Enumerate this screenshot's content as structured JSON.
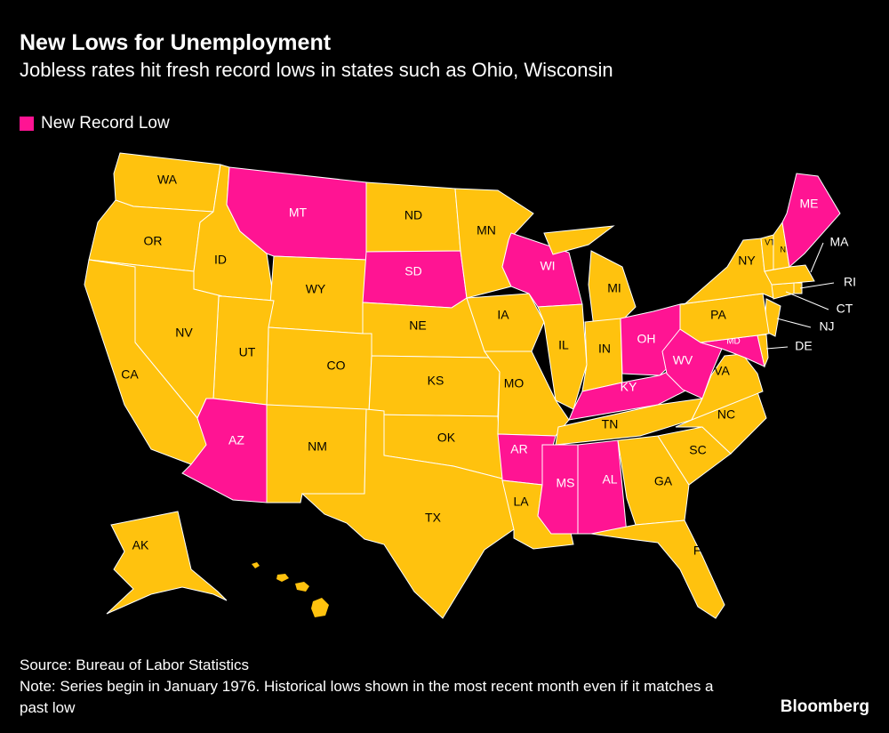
{
  "header": {
    "title": "New Lows for Unemployment",
    "subtitle": "Jobless rates hit fresh record lows in states such as Ohio, Wisconsin"
  },
  "legend": {
    "label": "New Record Low",
    "color": "#ff1493"
  },
  "default_color": "#ffc20e",
  "states": [
    {
      "abbr": "WA",
      "record_low": false
    },
    {
      "abbr": "OR",
      "record_low": false
    },
    {
      "abbr": "ID",
      "record_low": false
    },
    {
      "abbr": "MT",
      "record_low": true
    },
    {
      "abbr": "WY",
      "record_low": false
    },
    {
      "abbr": "ND",
      "record_low": false
    },
    {
      "abbr": "SD",
      "record_low": true
    },
    {
      "abbr": "NE",
      "record_low": false
    },
    {
      "abbr": "CO",
      "record_low": false
    },
    {
      "abbr": "UT",
      "record_low": false
    },
    {
      "abbr": "NV",
      "record_low": false
    },
    {
      "abbr": "CA",
      "record_low": false
    },
    {
      "abbr": "AZ",
      "record_low": true
    },
    {
      "abbr": "NM",
      "record_low": false
    },
    {
      "abbr": "KS",
      "record_low": false
    },
    {
      "abbr": "OK",
      "record_low": false
    },
    {
      "abbr": "TX",
      "record_low": false
    },
    {
      "abbr": "MN",
      "record_low": false
    },
    {
      "abbr": "IA",
      "record_low": false
    },
    {
      "abbr": "MO",
      "record_low": false
    },
    {
      "abbr": "AR",
      "record_low": true
    },
    {
      "abbr": "LA",
      "record_low": false
    },
    {
      "abbr": "MS",
      "record_low": true
    },
    {
      "abbr": "AL",
      "record_low": true
    },
    {
      "abbr": "WI",
      "record_low": true
    },
    {
      "abbr": "MI",
      "record_low": false
    },
    {
      "abbr": "IL",
      "record_low": false
    },
    {
      "abbr": "IN",
      "record_low": false
    },
    {
      "abbr": "OH",
      "record_low": true
    },
    {
      "abbr": "KY",
      "record_low": true
    },
    {
      "abbr": "TN",
      "record_low": false
    },
    {
      "abbr": "GA",
      "record_low": false
    },
    {
      "abbr": "FL",
      "record_low": false
    },
    {
      "abbr": "SC",
      "record_low": false
    },
    {
      "abbr": "NC",
      "record_low": false
    },
    {
      "abbr": "VA",
      "record_low": false
    },
    {
      "abbr": "WV",
      "record_low": true
    },
    {
      "abbr": "MD",
      "record_low": true
    },
    {
      "abbr": "DE",
      "record_low": false
    },
    {
      "abbr": "NJ",
      "record_low": false
    },
    {
      "abbr": "PA",
      "record_low": false
    },
    {
      "abbr": "NY",
      "record_low": false
    },
    {
      "abbr": "CT",
      "record_low": false
    },
    {
      "abbr": "RI",
      "record_low": false
    },
    {
      "abbr": "MA",
      "record_low": false
    },
    {
      "abbr": "VT",
      "record_low": false
    },
    {
      "abbr": "NH",
      "record_low": false
    },
    {
      "abbr": "ME",
      "record_low": true
    },
    {
      "abbr": "AK",
      "record_low": false
    }
  ],
  "footer": {
    "source": "Source: Bureau of Labor Statistics",
    "note": "Note: Series begin in January 1976. Historical lows shown in the most recent month even if it matches a past low"
  },
  "logo": "Bloomberg"
}
